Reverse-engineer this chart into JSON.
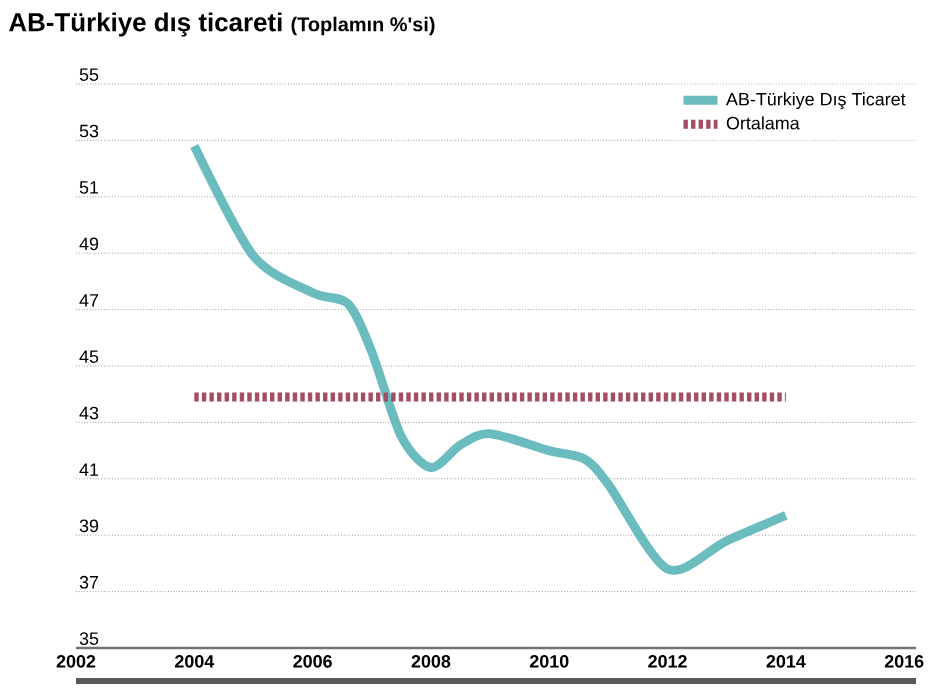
{
  "chart_data": {
    "type": "line",
    "title": "AB-Türkiye dış ticareti",
    "subtitle": "(Toplamın %'si)",
    "series": [
      {
        "name": "AB-Türkiye Dış Ticaret",
        "color": "#6bbcbf",
        "x": [
          2004,
          2005,
          2006,
          2006.6,
          2007,
          2007.5,
          2008,
          2008.5,
          2009,
          2010,
          2010.6,
          2011,
          2012,
          2013,
          2014
        ],
        "values": [
          52.8,
          48.9,
          47.6,
          47.2,
          45.5,
          42.5,
          41.4,
          42.2,
          42.6,
          42.0,
          41.7,
          40.8,
          37.8,
          38.8,
          39.7
        ],
        "line_style": "solid"
      },
      {
        "name": "Ortalama",
        "color": "#a34e64",
        "x": [
          2004,
          2014
        ],
        "values": [
          43.9,
          43.9
        ],
        "line_style": "dotted"
      }
    ],
    "xlim": [
      2002,
      2016.2
    ],
    "xticks": [
      2002,
      2004,
      2006,
      2008,
      2010,
      2012,
      2014,
      2016
    ],
    "ylim": [
      35,
      55
    ],
    "yticks": [
      35,
      37,
      39,
      41,
      43,
      45,
      47,
      49,
      51,
      53,
      55
    ],
    "grid": "y",
    "legend": "top right",
    "marker": "none"
  }
}
